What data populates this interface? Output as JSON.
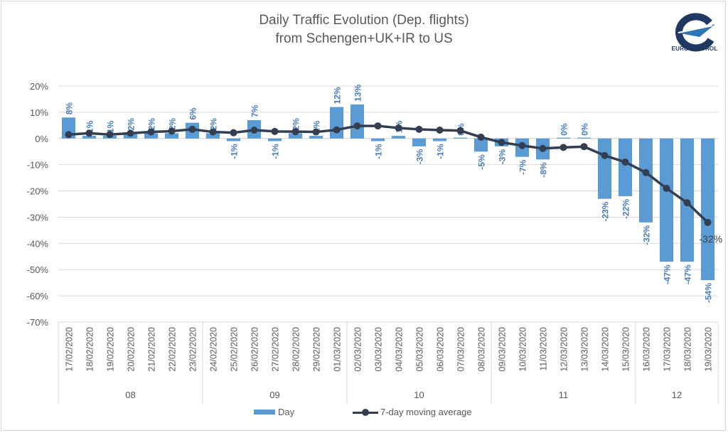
{
  "chart_data": {
    "type": "bar",
    "title": "Daily Traffic Evolution (Dep. flights)",
    "subtitle": "from Schengen+UK+IR  to US",
    "xlabel": "",
    "ylabel": "",
    "ylim": [
      -70,
      20
    ],
    "yticks": [
      20,
      10,
      0,
      -10,
      -20,
      -30,
      -40,
      -50,
      -60,
      -70
    ],
    "ytick_labels": [
      "20%",
      "10%",
      "0%",
      "-10%",
      "-20%",
      "-30%",
      "-40%",
      "-50%",
      "-60%",
      "-70%"
    ],
    "grid": true,
    "legend_position": "bottom",
    "categories": [
      "17/02/2020",
      "18/02/2020",
      "19/02/2020",
      "20/02/2020",
      "21/02/2020",
      "22/02/2020",
      "23/02/2020",
      "24/02/2020",
      "25/02/2020",
      "26/02/2020",
      "27/02/2020",
      "28/02/2020",
      "29/02/2020",
      "01/03/2020",
      "02/03/2020",
      "03/03/2020",
      "04/03/2020",
      "05/03/2020",
      "06/03/2020",
      "07/03/2020",
      "08/03/2020",
      "09/03/2020",
      "10/03/2020",
      "11/03/2020",
      "12/03/2020",
      "13/03/2020",
      "14/03/2020",
      "15/03/2020",
      "16/03/2020",
      "17/03/2020",
      "18/03/2020",
      "19/03/2020"
    ],
    "week_groups": [
      {
        "label": "08",
        "count": 7
      },
      {
        "label": "09",
        "count": 7
      },
      {
        "label": "10",
        "count": 7
      },
      {
        "label": "11",
        "count": 7
      },
      {
        "label": "12",
        "count": 4
      }
    ],
    "series": [
      {
        "name": "Day",
        "type": "bar",
        "color": "#5b9bd5",
        "values": [
          8,
          1,
          1,
          2,
          2,
          2,
          6,
          2,
          -1,
          7,
          -1,
          2,
          1,
          12,
          13,
          -1,
          1,
          -3,
          -1,
          0,
          -5,
          -3,
          -7,
          -8,
          0,
          0,
          -23,
          -22,
          -32,
          -47,
          -47,
          -54
        ],
        "labels": [
          "8%",
          "1%",
          "1%",
          "2%",
          "2%",
          "2%",
          "6%",
          "2%",
          "-1%",
          "7%",
          "-1%",
          "2%",
          "1%",
          "12%",
          "13%",
          "-1%",
          "1%",
          "-3%",
          "-1%",
          "0%",
          "-5%",
          "-3%",
          "-7%",
          "-8%",
          "0%",
          "0%",
          "-23%",
          "-22%",
          "-32%",
          "-47%",
          "-47%",
          "-54%"
        ]
      },
      {
        "name": "7-day moving average",
        "type": "line",
        "color": "#333f50",
        "values": [
          1.5,
          2,
          1.5,
          2,
          2.5,
          2.8,
          3.5,
          2.5,
          2.2,
          3.2,
          2.7,
          2.6,
          2.5,
          3.3,
          4.8,
          4.8,
          4,
          3.5,
          3.2,
          3,
          0.5,
          -1.5,
          -2.7,
          -3.8,
          -3.4,
          -3.1,
          -6.5,
          -9,
          -13,
          -19,
          -24.5,
          -32
        ],
        "end_label": "-32%"
      }
    ]
  },
  "logo": {
    "name": "EUROCONTROL",
    "label": "EUROCONTROL"
  },
  "legend": {
    "day_label": "Day",
    "ma_label": "7-day moving average"
  }
}
